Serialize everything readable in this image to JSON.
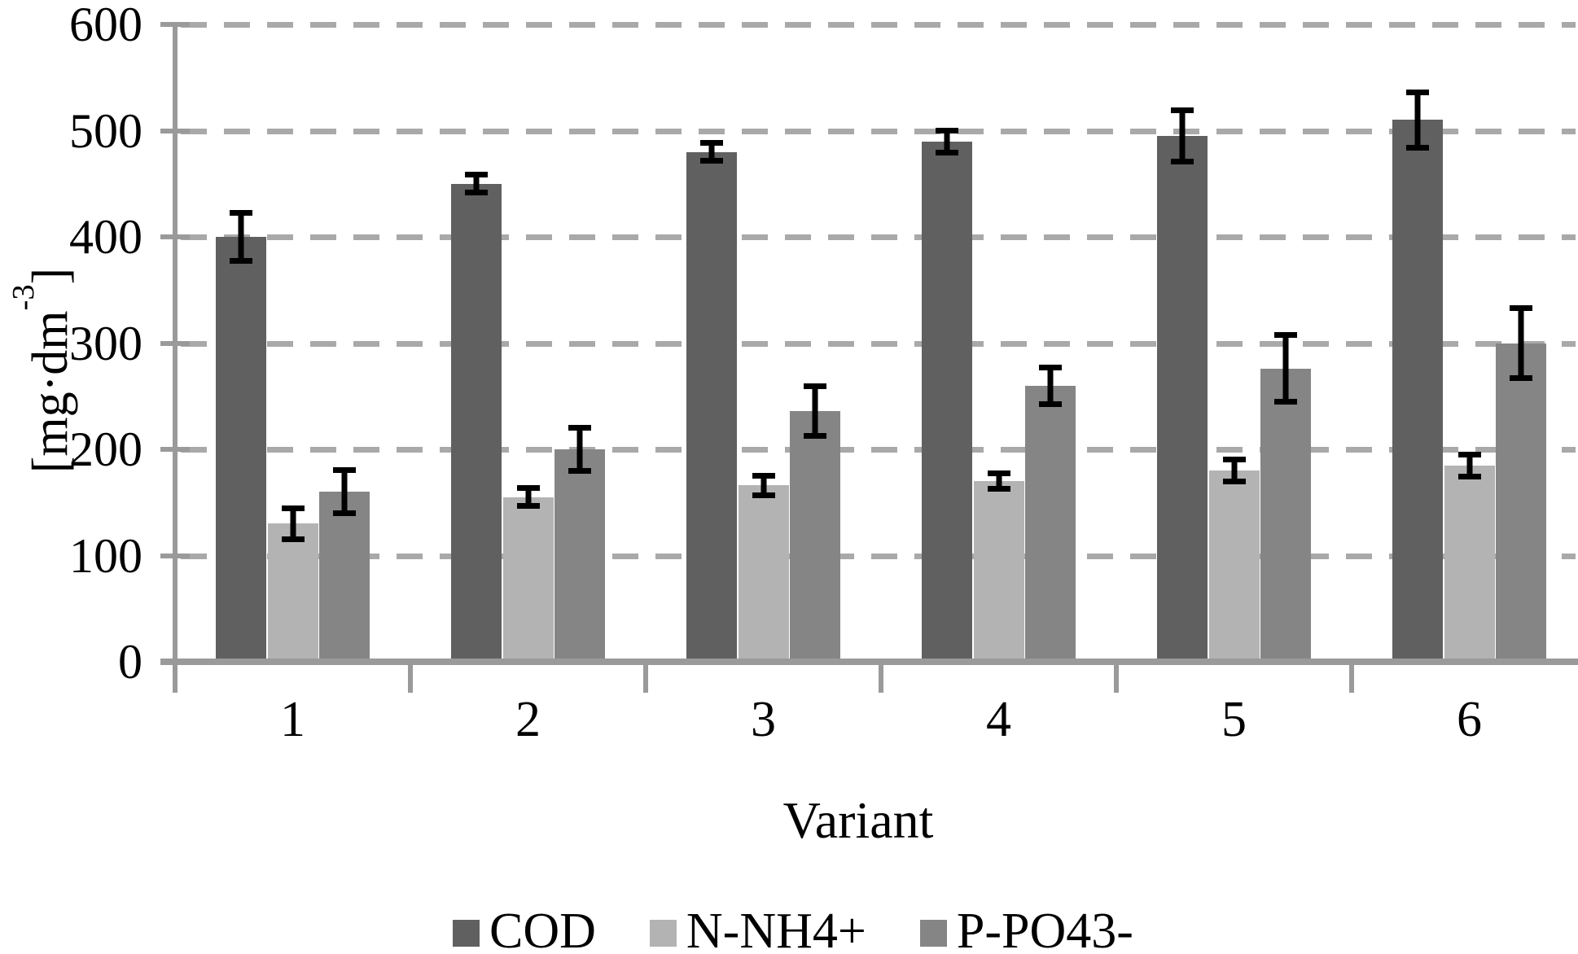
{
  "figure": {
    "x_axis_title": "Variant",
    "y_axis_title": {
      "prefix": "[mg·dm",
      "superscript": "-3",
      "suffix": "]"
    }
  },
  "chart_data": {
    "type": "bar",
    "title": "",
    "xlabel": "Variant",
    "ylabel": "[mg·dm-3]",
    "ylim": [
      0,
      600
    ],
    "y_ticks": [
      0,
      100,
      200,
      300,
      400,
      500,
      600
    ],
    "grid": "horizontal-dashed",
    "legend_position": "bottom",
    "error_bars": true,
    "categories": [
      "1",
      "2",
      "3",
      "4",
      "5",
      "6"
    ],
    "series": [
      {
        "name": "COD",
        "color": "#606060",
        "values": [
          400,
          450,
          480,
          490,
          495,
          510
        ],
        "errors": [
          25,
          11,
          11,
          13,
          27,
          29
        ]
      },
      {
        "name": "N-NH4+",
        "color": "#b3b3b3",
        "values": [
          130,
          155,
          166,
          170,
          180,
          185
        ],
        "errors": [
          17,
          11,
          12,
          10,
          13,
          13
        ]
      },
      {
        "name": "P-PO43-",
        "color": "#858585",
        "values": [
          160,
          200,
          236,
          260,
          276,
          300
        ],
        "errors": [
          23,
          23,
          26,
          20,
          34,
          36
        ]
      }
    ],
    "colors": {
      "axis": "#9a9a9a",
      "gridline": "#a9a9a9",
      "error_bar": "#000000",
      "background": "#ffffff"
    }
  }
}
